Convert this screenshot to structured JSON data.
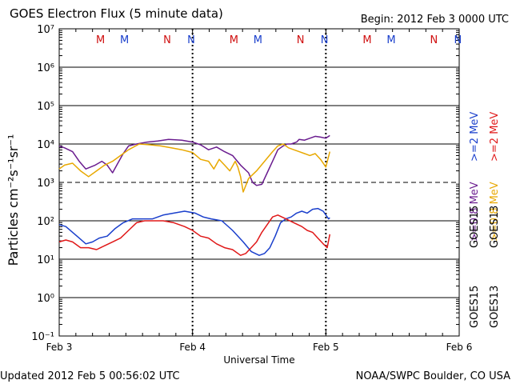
{
  "chart_data": {
    "type": "line",
    "title": "GOES Electron Flux (5 minute data)",
    "begin_label": "Begin: 2012 Feb 3 0000 UTC",
    "xlabel": "Universal Time",
    "ylabel": "Particles cm⁻²s⁻¹sr⁻¹",
    "ylim_log10": [
      -1,
      7
    ],
    "xlim_days": [
      0,
      3
    ],
    "y_ticks": [
      {
        "exp": 7,
        "label": "10⁷"
      },
      {
        "exp": 6,
        "label": "10⁶"
      },
      {
        "exp": 5,
        "label": "10⁵"
      },
      {
        "exp": 4,
        "label": "10⁴"
      },
      {
        "exp": 3,
        "label": "10³"
      },
      {
        "exp": 2,
        "label": "10²"
      },
      {
        "exp": 1,
        "label": "10¹"
      },
      {
        "exp": 0,
        "label": "10⁰"
      },
      {
        "exp": -1,
        "label": "10⁻¹"
      }
    ],
    "x_ticks": [
      {
        "day": 0,
        "label": "Feb 3"
      },
      {
        "day": 1,
        "label": "Feb 4"
      },
      {
        "day": 2,
        "label": "Feb 5"
      },
      {
        "day": 3,
        "label": "Feb 6"
      }
    ],
    "threshold_exp": 3,
    "local_time_markers": [
      {
        "letter": "M",
        "day": 0.31,
        "color": "#d01010"
      },
      {
        "letter": "M",
        "day": 0.49,
        "color": "#1a3fcc"
      },
      {
        "letter": "N",
        "day": 0.81,
        "color": "#d01010"
      },
      {
        "letter": "N",
        "day": 0.99,
        "color": "#1a3fcc"
      },
      {
        "letter": "M",
        "day": 1.31,
        "color": "#d01010"
      },
      {
        "letter": "M",
        "day": 1.49,
        "color": "#1a3fcc"
      },
      {
        "letter": "N",
        "day": 1.81,
        "color": "#d01010"
      },
      {
        "letter": "N",
        "day": 1.99,
        "color": "#1a3fcc"
      },
      {
        "letter": "M",
        "day": 2.31,
        "color": "#d01010"
      },
      {
        "letter": "M",
        "day": 2.49,
        "color": "#1a3fcc"
      },
      {
        "letter": "N",
        "day": 2.81,
        "color": "#d01010"
      },
      {
        "letter": "N",
        "day": 2.99,
        "color": "#1a3fcc"
      }
    ],
    "series": [
      {
        "name": "GOES15 >=0.8 MeV",
        "color": "#6a1c8f",
        "points": [
          [
            0.0,
            3.95
          ],
          [
            0.04,
            3.9
          ],
          [
            0.1,
            3.8
          ],
          [
            0.15,
            3.55
          ],
          [
            0.2,
            3.35
          ],
          [
            0.27,
            3.45
          ],
          [
            0.32,
            3.55
          ],
          [
            0.36,
            3.45
          ],
          [
            0.4,
            3.25
          ],
          [
            0.44,
            3.5
          ],
          [
            0.48,
            3.75
          ],
          [
            0.52,
            3.95
          ],
          [
            0.58,
            4.0
          ],
          [
            0.66,
            4.05
          ],
          [
            0.74,
            4.08
          ],
          [
            0.82,
            4.12
          ],
          [
            0.92,
            4.1
          ],
          [
            1.0,
            4.05
          ],
          [
            1.06,
            3.98
          ],
          [
            1.12,
            3.85
          ],
          [
            1.18,
            3.92
          ],
          [
            1.24,
            3.8
          ],
          [
            1.3,
            3.7
          ],
          [
            1.36,
            3.45
          ],
          [
            1.42,
            3.25
          ],
          [
            1.45,
            3.0
          ],
          [
            1.48,
            2.92
          ],
          [
            1.52,
            2.95
          ],
          [
            1.56,
            3.25
          ],
          [
            1.6,
            3.55
          ],
          [
            1.64,
            3.85
          ],
          [
            1.68,
            3.95
          ],
          [
            1.71,
            4.0
          ],
          [
            1.74,
            4.0
          ],
          [
            1.78,
            4.05
          ],
          [
            1.8,
            4.12
          ],
          [
            1.84,
            4.1
          ],
          [
            1.88,
            4.15
          ],
          [
            1.92,
            4.2
          ],
          [
            1.96,
            4.18
          ],
          [
            2.0,
            4.15
          ],
          [
            2.03,
            4.22
          ]
        ],
        "labels": [
          "GOES15",
          ">=0.8 MeV"
        ]
      },
      {
        "name": "GOES13 >=0.8 MeV",
        "color": "#e8a800",
        "points": [
          [
            0.0,
            3.35
          ],
          [
            0.04,
            3.45
          ],
          [
            0.1,
            3.5
          ],
          [
            0.16,
            3.3
          ],
          [
            0.22,
            3.15
          ],
          [
            0.28,
            3.3
          ],
          [
            0.34,
            3.45
          ],
          [
            0.4,
            3.55
          ],
          [
            0.46,
            3.7
          ],
          [
            0.52,
            3.85
          ],
          [
            0.6,
            4.0
          ],
          [
            0.68,
            3.98
          ],
          [
            0.76,
            3.95
          ],
          [
            0.84,
            3.9
          ],
          [
            0.92,
            3.85
          ],
          [
            1.0,
            3.78
          ],
          [
            1.06,
            3.6
          ],
          [
            1.12,
            3.55
          ],
          [
            1.16,
            3.35
          ],
          [
            1.2,
            3.6
          ],
          [
            1.24,
            3.45
          ],
          [
            1.28,
            3.3
          ],
          [
            1.32,
            3.55
          ],
          [
            1.34,
            3.4
          ],
          [
            1.36,
            3.15
          ],
          [
            1.38,
            2.75
          ],
          [
            1.42,
            3.1
          ],
          [
            1.48,
            3.3
          ],
          [
            1.54,
            3.55
          ],
          [
            1.6,
            3.8
          ],
          [
            1.64,
            3.95
          ],
          [
            1.68,
            4.0
          ],
          [
            1.72,
            3.9
          ],
          [
            1.76,
            3.85
          ],
          [
            1.8,
            3.8
          ],
          [
            1.84,
            3.75
          ],
          [
            1.88,
            3.7
          ],
          [
            1.92,
            3.75
          ],
          [
            1.96,
            3.6
          ],
          [
            2.0,
            3.4
          ],
          [
            2.03,
            3.8
          ]
        ],
        "labels": [
          "GOES13",
          ">=0.8 MeV"
        ]
      },
      {
        "name": "GOES15 >=2 MeV",
        "color": "#1a3fcc",
        "points": [
          [
            0.0,
            1.9
          ],
          [
            0.05,
            1.85
          ],
          [
            0.1,
            1.7
          ],
          [
            0.15,
            1.55
          ],
          [
            0.2,
            1.4
          ],
          [
            0.25,
            1.45
          ],
          [
            0.3,
            1.55
          ],
          [
            0.36,
            1.6
          ],
          [
            0.42,
            1.8
          ],
          [
            0.48,
            1.95
          ],
          [
            0.55,
            2.05
          ],
          [
            0.62,
            2.05
          ],
          [
            0.7,
            2.05
          ],
          [
            0.78,
            2.15
          ],
          [
            0.86,
            2.2
          ],
          [
            0.94,
            2.25
          ],
          [
            1.02,
            2.2
          ],
          [
            1.08,
            2.1
          ],
          [
            1.14,
            2.05
          ],
          [
            1.22,
            2.0
          ],
          [
            1.3,
            1.75
          ],
          [
            1.38,
            1.45
          ],
          [
            1.44,
            1.2
          ],
          [
            1.5,
            1.1
          ],
          [
            1.54,
            1.15
          ],
          [
            1.58,
            1.3
          ],
          [
            1.62,
            1.6
          ],
          [
            1.66,
            1.95
          ],
          [
            1.7,
            2.05
          ],
          [
            1.74,
            2.1
          ],
          [
            1.78,
            2.2
          ],
          [
            1.82,
            2.25
          ],
          [
            1.86,
            2.2
          ],
          [
            1.9,
            2.3
          ],
          [
            1.94,
            2.32
          ],
          [
            1.98,
            2.25
          ],
          [
            2.02,
            2.05
          ],
          [
            2.03,
            2.08
          ]
        ],
        "labels": [
          "GOES15",
          ">=2 MeV"
        ]
      },
      {
        "name": "GOES13 >=2 MeV",
        "color": "#e01818",
        "points": [
          [
            0.0,
            1.45
          ],
          [
            0.05,
            1.5
          ],
          [
            0.1,
            1.45
          ],
          [
            0.16,
            1.3
          ],
          [
            0.22,
            1.3
          ],
          [
            0.28,
            1.25
          ],
          [
            0.34,
            1.35
          ],
          [
            0.4,
            1.45
          ],
          [
            0.46,
            1.55
          ],
          [
            0.52,
            1.75
          ],
          [
            0.58,
            1.95
          ],
          [
            0.64,
            2.0
          ],
          [
            0.7,
            2.0
          ],
          [
            0.78,
            2.0
          ],
          [
            0.86,
            1.95
          ],
          [
            0.94,
            1.85
          ],
          [
            1.0,
            1.75
          ],
          [
            1.06,
            1.6
          ],
          [
            1.12,
            1.55
          ],
          [
            1.18,
            1.4
          ],
          [
            1.24,
            1.3
          ],
          [
            1.3,
            1.25
          ],
          [
            1.36,
            1.1
          ],
          [
            1.4,
            1.15
          ],
          [
            1.44,
            1.3
          ],
          [
            1.48,
            1.45
          ],
          [
            1.52,
            1.7
          ],
          [
            1.56,
            1.9
          ],
          [
            1.6,
            2.1
          ],
          [
            1.64,
            2.15
          ],
          [
            1.7,
            2.05
          ],
          [
            1.76,
            1.95
          ],
          [
            1.82,
            1.85
          ],
          [
            1.86,
            1.75
          ],
          [
            1.9,
            1.7
          ],
          [
            1.94,
            1.55
          ],
          [
            1.98,
            1.4
          ],
          [
            2.01,
            1.3
          ],
          [
            2.03,
            1.65
          ]
        ],
        "labels": [
          "GOES13",
          ">=2 MeV"
        ]
      }
    ],
    "updated_label": "Updated 2012 Feb  5 00:56:02 UTC",
    "credit_label": "NOAA/SWPC Boulder, CO USA"
  }
}
